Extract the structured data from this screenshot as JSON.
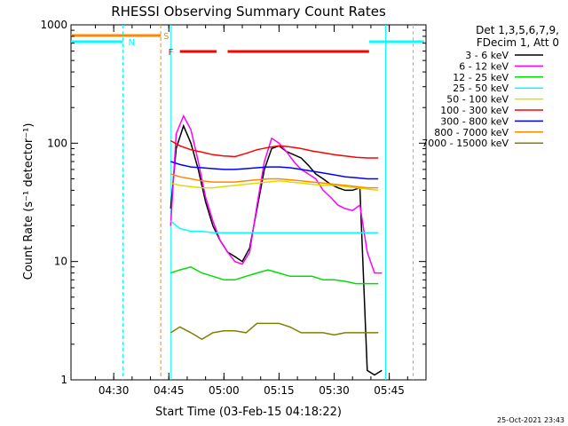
{
  "chart_data": {
    "type": "line",
    "title": "RHESSI Observing Summary Count Rates",
    "xlabel": "Start Time (03-Feb-15 04:18:22)",
    "ylabel": "Count Rate (s⁻¹ detector⁻¹)",
    "x_tick_labels": [
      "04:30",
      "04:45",
      "05:00",
      "05:15",
      "05:30",
      "05:45"
    ],
    "y_tick_labels": [
      "1",
      "10",
      "100",
      "1000"
    ],
    "y_scale": "log",
    "ylim": [
      1,
      1000
    ],
    "xlim_minutes": [
      258.37,
      355.0
    ],
    "grid": false,
    "legend_position": "right",
    "legend_header": [
      "Det 1,3,5,6,7,9,",
      "FDecim 1, Att 0"
    ],
    "flags": {
      "saa_label": "S",
      "night_label": "N",
      "flare_label": "F"
    },
    "saa_intervals": [
      [
        258.37,
        282.8
      ]
    ],
    "night_intervals": [
      [
        258.37,
        272.5
      ],
      [
        339.5,
        354.5
      ]
    ],
    "flare_intervals": [
      [
        288.0,
        298.0
      ],
      [
        301.0,
        339.5
      ]
    ],
    "time_markers": [
      {
        "minute": 272.5,
        "color": "#00ffff"
      },
      {
        "minute": 282.8,
        "color": "#ff8800"
      },
      {
        "minute": 351.5,
        "color": "#00ffff"
      }
    ],
    "data_start_minute": 285.5,
    "data_end_minute": 344.0,
    "series": [
      {
        "name": "3 - 6 keV",
        "color": "#000000",
        "x": [
          285.5,
          287,
          289,
          291,
          293,
          295,
          297,
          299,
          301,
          303,
          305,
          307,
          309,
          311,
          313,
          315,
          317,
          319,
          321,
          323,
          325,
          327,
          329,
          331,
          333,
          335,
          337,
          339,
          341,
          343
        ],
        "values": [
          28,
          90,
          140,
          100,
          60,
          32,
          20,
          15,
          12,
          11,
          10,
          13,
          28,
          60,
          90,
          95,
          85,
          80,
          75,
          65,
          55,
          50,
          45,
          42,
          40,
          40,
          42,
          1.2,
          1.1,
          1.2
        ]
      },
      {
        "name": "6 - 12 keV",
        "color": "#ff00ff",
        "x": [
          285.5,
          287,
          289,
          291,
          293,
          295,
          297,
          299,
          301,
          303,
          305,
          307,
          309,
          311,
          313,
          315,
          317,
          319,
          321,
          323,
          325,
          327,
          329,
          331,
          333,
          335,
          337,
          339,
          341,
          343
        ],
        "values": [
          20,
          120,
          170,
          130,
          70,
          35,
          22,
          15,
          12,
          10,
          9.5,
          12,
          30,
          70,
          110,
          100,
          85,
          70,
          60,
          55,
          50,
          40,
          35,
          30,
          28,
          27,
          30,
          12,
          8,
          8
        ]
      },
      {
        "name": "12 - 25 keV",
        "color": "#00dd00",
        "x": [
          285.5,
          288,
          291,
          294,
          297,
          300,
          303,
          306,
          309,
          312,
          315,
          318,
          321,
          324,
          327,
          330,
          333,
          336,
          339,
          342
        ],
        "values": [
          8,
          8.5,
          9,
          8,
          7.5,
          7,
          7,
          7.5,
          8,
          8.5,
          8,
          7.5,
          7.5,
          7.5,
          7,
          7,
          6.8,
          6.5,
          6.5,
          6.5
        ]
      },
      {
        "name": "25 - 50 keV",
        "color": "#00ffff",
        "x": [
          285.5,
          288,
          291,
          294,
          297,
          300,
          303,
          306,
          309,
          312,
          315,
          318,
          321,
          324,
          327,
          330,
          333,
          336,
          339,
          342
        ],
        "values": [
          22,
          19,
          18,
          18,
          17.5,
          17.5,
          17.5,
          17.5,
          17.5,
          17.5,
          17.5,
          17.5,
          17.5,
          17.5,
          17.5,
          17.5,
          17.5,
          17.5,
          17.5,
          17.5
        ]
      },
      {
        "name": "50 - 100 keV",
        "color": "#dddd00",
        "x": [
          285.5,
          288,
          291,
          294,
          297,
          300,
          303,
          306,
          309,
          312,
          315,
          318,
          321,
          324,
          327,
          330,
          333,
          336,
          339,
          342
        ],
        "values": [
          46,
          44,
          43,
          42,
          42,
          43,
          44,
          45,
          46,
          47,
          48,
          47,
          46,
          45,
          44,
          44,
          43,
          42,
          41,
          40
        ]
      },
      {
        "name": "100 - 300 keV",
        "color": "#ff0000",
        "x": [
          285.5,
          288,
          291,
          294,
          297,
          300,
          303,
          306,
          309,
          312,
          315,
          318,
          321,
          324,
          327,
          330,
          333,
          336,
          339,
          342
        ],
        "values": [
          105,
          95,
          88,
          84,
          80,
          78,
          77,
          82,
          88,
          92,
          95,
          93,
          90,
          86,
          83,
          80,
          78,
          76,
          75,
          75
        ]
      },
      {
        "name": "300 - 800 keV",
        "color": "#0000ff",
        "x": [
          285.5,
          288,
          291,
          294,
          297,
          300,
          303,
          306,
          309,
          312,
          315,
          318,
          321,
          324,
          327,
          330,
          333,
          336,
          339,
          342
        ],
        "values": [
          70,
          66,
          63,
          62,
          61,
          60,
          60,
          61,
          62,
          63,
          63,
          62,
          60,
          58,
          56,
          54,
          52,
          51,
          50,
          50
        ]
      },
      {
        "name": "800 - 7000 keV",
        "color": "#ff8800",
        "x": [
          285.5,
          288,
          291,
          294,
          297,
          300,
          303,
          306,
          309,
          312,
          315,
          318,
          321,
          324,
          327,
          330,
          333,
          336,
          339,
          342
        ],
        "values": [
          55,
          52,
          50,
          48,
          47,
          47,
          47,
          48,
          49,
          50,
          50,
          49,
          48,
          47,
          46,
          45,
          44,
          43,
          42,
          42
        ]
      },
      {
        "name": "7000 - 15000 keV",
        "color": "#808000",
        "x": [
          285.5,
          288,
          291,
          294,
          297,
          300,
          303,
          306,
          309,
          312,
          315,
          318,
          321,
          324,
          327,
          330,
          333,
          336,
          339,
          342
        ],
        "values": [
          2.5,
          2.8,
          2.5,
          2.2,
          2.5,
          2.6,
          2.6,
          2.5,
          3.0,
          3.0,
          3.0,
          2.8,
          2.5,
          2.5,
          2.5,
          2.4,
          2.5,
          2.5,
          2.5,
          2.5
        ]
      }
    ],
    "timestamp": "25-Oct-2021 23:43"
  }
}
